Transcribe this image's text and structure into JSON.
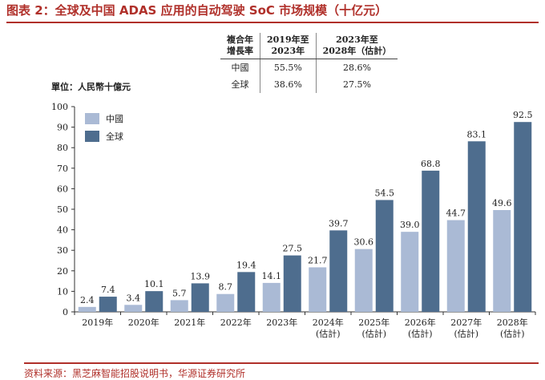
{
  "header": {
    "title": "图表 2：全球及中国 ADAS 应用的自动驾驶 SoC 市场规模（十亿元）"
  },
  "cagr_table": {
    "headers": [
      "複合年\n增長率",
      "2019年至\n2023年",
      "2023年至\n2028年（估計）"
    ],
    "rows": [
      [
        "中國",
        "55.5%",
        "28.6%"
      ],
      [
        "全球",
        "38.6%",
        "27.5%"
      ]
    ]
  },
  "unit_label": "單位：人民幣十億元",
  "colors": {
    "china": "#aabad5",
    "global": "#4e6d8e",
    "accent": "#b0302a"
  },
  "chart_data": {
    "type": "bar",
    "categories": [
      "2019年",
      "2020年",
      "2021年",
      "2022年",
      "2023年",
      "2024年\n(估計)",
      "2025年\n(估計)",
      "2026年\n(估計)",
      "2027年\n(估計)",
      "2028年\n(估計)"
    ],
    "series": [
      {
        "name": "中國",
        "values": [
          2.4,
          3.4,
          5.7,
          8.7,
          14.1,
          21.7,
          30.6,
          39.0,
          44.7,
          49.6
        ]
      },
      {
        "name": "全球",
        "values": [
          7.4,
          10.1,
          13.9,
          19.4,
          27.5,
          39.7,
          54.5,
          68.8,
          83.1,
          92.5
        ]
      }
    ],
    "ylim": [
      0,
      100
    ],
    "yticks": [
      0,
      10,
      20,
      30,
      40,
      50,
      60,
      70,
      80,
      90,
      100
    ],
    "legend_position": "top-left",
    "grid": false
  },
  "source": "资料来源：黑芝麻智能招股说明书，华源证券研究所"
}
